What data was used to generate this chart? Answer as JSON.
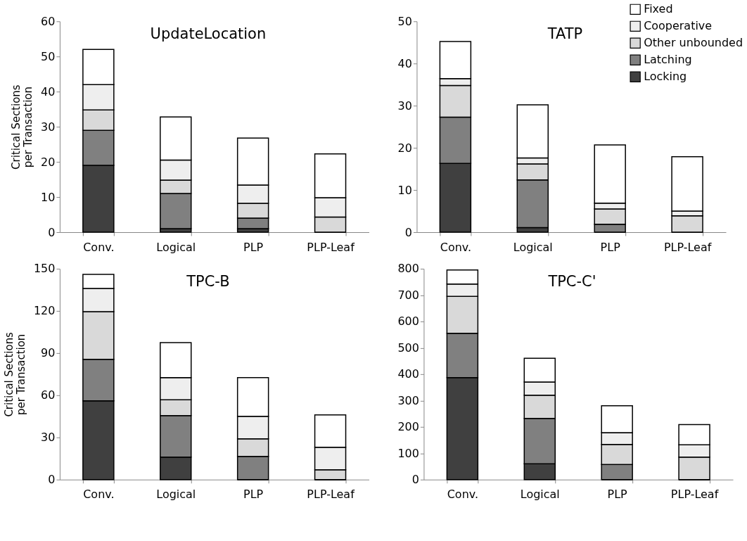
{
  "chart_data": [
    {
      "type": "bar",
      "stacked": true,
      "title": "UpdateLocation",
      "ylabel": "Critical Sections per Transaction",
      "categories": [
        "Conv.",
        "Logical",
        "PLP",
        "PLP-Leaf"
      ],
      "ylim": [
        0,
        60
      ],
      "yticks": [
        0,
        10,
        20,
        30,
        40,
        50,
        60
      ],
      "grid": false,
      "series": [
        {
          "color": "#404040",
          "values": [
            19,
            1,
            1,
            0
          ]
        },
        {
          "color": "#808080",
          "values": [
            10,
            10,
            3,
            0
          ]
        },
        {
          "color": "#d9d9d9",
          "values": [
            5.8,
            3.8,
            4.2,
            4.3
          ]
        },
        {
          "color": "#eeeeee",
          "values": [
            7.2,
            5.7,
            5.2,
            5.5
          ]
        },
        {
          "color": "#ffffff",
          "values": [
            10,
            12.3,
            13.4,
            12.5
          ]
        }
      ]
    },
    {
      "type": "bar",
      "stacked": true,
      "title": "TATP",
      "categories": [
        "Conv.",
        "Logical",
        "PLP",
        "PLP-Leaf"
      ],
      "ylim": [
        0,
        50
      ],
      "yticks": [
        0,
        10,
        20,
        30,
        40,
        50
      ],
      "grid": false,
      "legend": "top right",
      "series": [
        {
          "name": "Locking",
          "color": "#404040",
          "values": [
            16.3,
            1.1,
            0,
            0
          ]
        },
        {
          "name": "Latching",
          "color": "#808080",
          "values": [
            11,
            11.3,
            1.9,
            0
          ]
        },
        {
          "name": "Other unbounded",
          "color": "#d9d9d9",
          "values": [
            7.5,
            3.8,
            3.6,
            3.9
          ]
        },
        {
          "name": "Cooperative",
          "color": "#eeeeee",
          "values": [
            1.6,
            1.4,
            1.4,
            1.1
          ]
        },
        {
          "name": "Fixed",
          "color": "#ffffff",
          "values": [
            8.8,
            12.6,
            13.8,
            12.9
          ]
        }
      ]
    },
    {
      "type": "bar",
      "stacked": true,
      "title": "TPC-B",
      "ylabel": "Critical Sections per Transaction",
      "categories": [
        "Conv.",
        "Logical",
        "PLP",
        "PLP-Leaf"
      ],
      "ylim": [
        0,
        150
      ],
      "yticks": [
        0,
        30,
        60,
        90,
        120,
        150
      ],
      "grid": false,
      "series": [
        {
          "color": "#404040",
          "values": [
            56,
            16,
            0,
            0
          ]
        },
        {
          "color": "#808080",
          "values": [
            29.5,
            29.5,
            16.5,
            0
          ]
        },
        {
          "color": "#d9d9d9",
          "values": [
            34,
            11.3,
            12.5,
            7
          ]
        },
        {
          "color": "#eeeeee",
          "values": [
            16.5,
            15.7,
            16,
            16
          ]
        },
        {
          "color": "#ffffff",
          "values": [
            10,
            25,
            27.5,
            23
          ]
        }
      ]
    },
    {
      "type": "bar",
      "stacked": true,
      "title": "TPC-C'",
      "categories": [
        "Conv.",
        "Logical",
        "PLP",
        "PLP-Leaf"
      ],
      "ylim": [
        0,
        800
      ],
      "yticks": [
        0,
        100,
        200,
        300,
        400,
        500,
        600,
        700,
        800
      ],
      "grid": false,
      "series": [
        {
          "color": "#404040",
          "values": [
            387,
            60,
            0,
            0
          ]
        },
        {
          "color": "#808080",
          "values": [
            168,
            172,
            57,
            0
          ]
        },
        {
          "color": "#d9d9d9",
          "values": [
            140,
            88,
            76,
            85
          ]
        },
        {
          "color": "#eeeeee",
          "values": [
            47,
            50,
            45,
            47
          ]
        },
        {
          "color": "#ffffff",
          "values": [
            53,
            90,
            102,
            77
          ]
        }
      ]
    }
  ]
}
